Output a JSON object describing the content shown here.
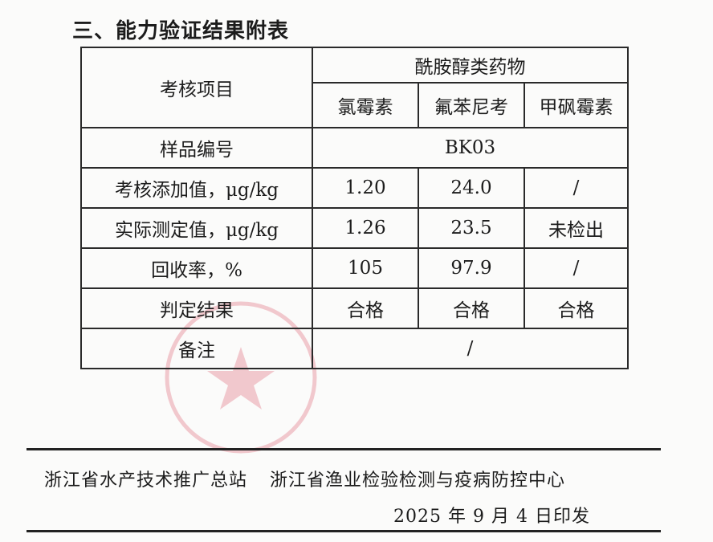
{
  "title": "三、能力验证结果附表",
  "table": {
    "item_header": "考核项目",
    "group_header": "酰胺醇类药物",
    "drugs": [
      "氯霉素",
      "氟苯尼考",
      "甲砜霉素"
    ],
    "sample_label": "样品编号",
    "sample_value": "BK03",
    "rows": [
      {
        "label": "考核添加值，μg/kg",
        "values": [
          "1.20",
          "24.0",
          "/"
        ]
      },
      {
        "label": "实际测定值，μg/kg",
        "values": [
          "1.26",
          "23.5",
          "未检出"
        ]
      },
      {
        "label": "回收率，%",
        "values": [
          "105",
          "97.9",
          "/"
        ]
      },
      {
        "label": "判定结果",
        "values": [
          "合格",
          "合格",
          "合格"
        ]
      }
    ],
    "remark_label": "备注",
    "remark_value": "/"
  },
  "footer": {
    "org1": "浙江省水产技术推广总站",
    "org2": "浙江省渔业检验检测与疫病防控中心",
    "date": "2025 年 9 月 4 日印发"
  },
  "stamp_color": "#d9485a"
}
